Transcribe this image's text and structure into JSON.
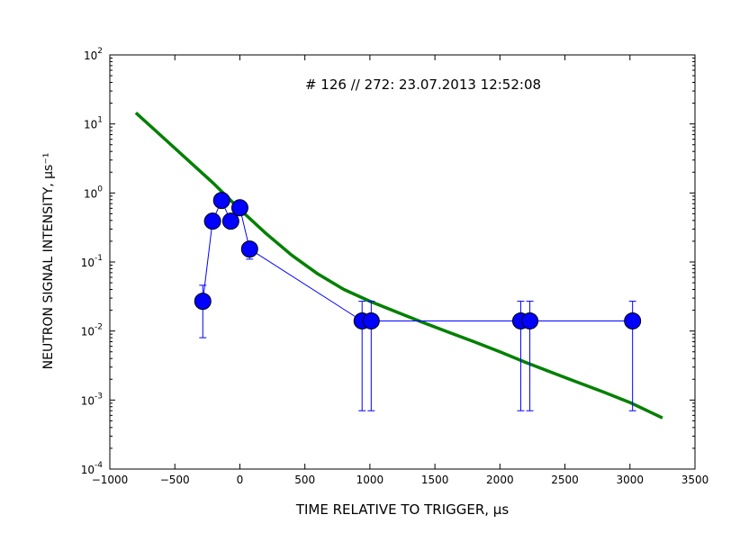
{
  "chart_data": {
    "type": "scatter",
    "title": "",
    "annotation": "# 126 // 272: 23.07.2013 12:52:08",
    "xlabel": "TIME RELATIVE TO TRIGGER, μs",
    "ylabel": "NEUTRON SIGNAL INTENSITY, μs⁻¹",
    "xlim": [
      -1000,
      3500
    ],
    "ylim": [
      0.0001,
      100
    ],
    "yscale": "log",
    "grid": false,
    "x_ticks": [
      -1000,
      -500,
      0,
      500,
      1000,
      1500,
      2000,
      2500,
      3000,
      3500
    ],
    "x_tick_labels": [
      "−1000",
      "−500",
      "0",
      "500",
      "1000",
      "1500",
      "2000",
      "2500",
      "3000",
      "3500"
    ],
    "y_ticks": [
      0.0001,
      0.001,
      0.01,
      0.1,
      1,
      10,
      100
    ],
    "y_tick_bases": [
      "10",
      "10",
      "10",
      "10",
      "10",
      "10",
      "10"
    ],
    "y_tick_exponents": [
      "-4",
      "-3",
      "-2",
      "-1",
      "0",
      "1",
      "2"
    ],
    "series": [
      {
        "type": "scatter-line",
        "color": "#0000ff",
        "points": [
          {
            "x": -285,
            "y": 0.027,
            "ylo": 0.008,
            "yhi": 0.046
          },
          {
            "x": -210,
            "y": 0.39
          },
          {
            "x": -140,
            "y": 0.78
          },
          {
            "x": -70,
            "y": 0.39
          },
          {
            "x": 0,
            "y": 0.61
          },
          {
            "x": 75,
            "y": 0.154,
            "ylo": 0.11,
            "yhi": 0.19
          },
          {
            "x": 940,
            "y": 0.014,
            "ylo": 0.0007,
            "yhi": 0.027
          },
          {
            "x": 1010,
            "y": 0.014,
            "ylo": 0.0007,
            "yhi": 0.027
          },
          {
            "x": 2160,
            "y": 0.014,
            "ylo": 0.0007,
            "yhi": 0.027
          },
          {
            "x": 2230,
            "y": 0.014,
            "ylo": 0.0007,
            "yhi": 0.027
          },
          {
            "x": 3020,
            "y": 0.014,
            "ylo": 0.0007,
            "yhi": 0.027
          }
        ]
      },
      {
        "type": "line",
        "color": "#008000",
        "x": [
          -800,
          -600,
          -400,
          -200,
          0,
          200,
          400,
          600,
          800,
          1000,
          1200,
          1400,
          1600,
          1800,
          2000,
          2200,
          2400,
          2600,
          2800,
          3000,
          3250
        ],
        "y": [
          14.5,
          6.6,
          3.0,
          1.36,
          0.58,
          0.26,
          0.125,
          0.067,
          0.04,
          0.027,
          0.019,
          0.0135,
          0.0097,
          0.007,
          0.005,
          0.0035,
          0.0025,
          0.0018,
          0.0013,
          0.00092,
          0.00055
        ]
      }
    ]
  }
}
